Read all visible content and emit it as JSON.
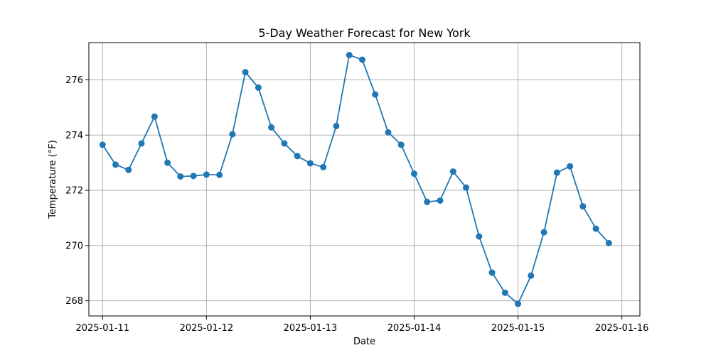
{
  "chart_data": {
    "type": "line",
    "title": "5-Day Weather Forecast for New York",
    "xlabel": "Date",
    "ylabel": "Temperature (°F)",
    "x_tick_labels": [
      "2025-01-11",
      "2025-01-12",
      "2025-01-13",
      "2025-01-14",
      "2025-01-15",
      "2025-01-16"
    ],
    "y_tick_labels": [
      "268",
      "270",
      "272",
      "274",
      "276"
    ],
    "xlim": [
      "2025-01-10T20:50",
      "2025-01-16T04:10"
    ],
    "ylim": [
      267.45,
      277.35
    ],
    "grid": true,
    "marker": "circle",
    "color": "#1f77b4",
    "series": [
      {
        "x": [
          "2025-01-11T00:00",
          "2025-01-11T03:00",
          "2025-01-11T06:00",
          "2025-01-11T09:00",
          "2025-01-11T12:00",
          "2025-01-11T15:00",
          "2025-01-11T18:00",
          "2025-01-11T21:00",
          "2025-01-12T00:00",
          "2025-01-12T03:00",
          "2025-01-12T06:00",
          "2025-01-12T09:00",
          "2025-01-12T12:00",
          "2025-01-12T15:00",
          "2025-01-12T18:00",
          "2025-01-12T21:00",
          "2025-01-13T00:00",
          "2025-01-13T03:00",
          "2025-01-13T06:00",
          "2025-01-13T09:00",
          "2025-01-13T12:00",
          "2025-01-13T15:00",
          "2025-01-13T18:00",
          "2025-01-13T21:00",
          "2025-01-14T00:00",
          "2025-01-14T03:00",
          "2025-01-14T06:00",
          "2025-01-14T09:00",
          "2025-01-14T12:00",
          "2025-01-14T15:00",
          "2025-01-14T18:00",
          "2025-01-14T21:00",
          "2025-01-15T00:00",
          "2025-01-15T03:00",
          "2025-01-15T06:00",
          "2025-01-15T09:00",
          "2025-01-15T12:00",
          "2025-01-15T15:00",
          "2025-01-15T18:00",
          "2025-01-15T21:00"
        ],
        "values": [
          273.65,
          272.93,
          272.74,
          273.7,
          274.67,
          273.0,
          272.5,
          272.52,
          272.57,
          272.56,
          274.03,
          276.28,
          275.72,
          274.28,
          273.7,
          273.24,
          272.98,
          272.84,
          274.33,
          276.9,
          276.73,
          275.47,
          274.1,
          273.65,
          272.6,
          271.58,
          271.63,
          272.68,
          272.1,
          270.33,
          269.02,
          268.29,
          267.89,
          268.91,
          270.48,
          272.64,
          272.87,
          271.42,
          270.61,
          270.09
        ]
      }
    ]
  }
}
